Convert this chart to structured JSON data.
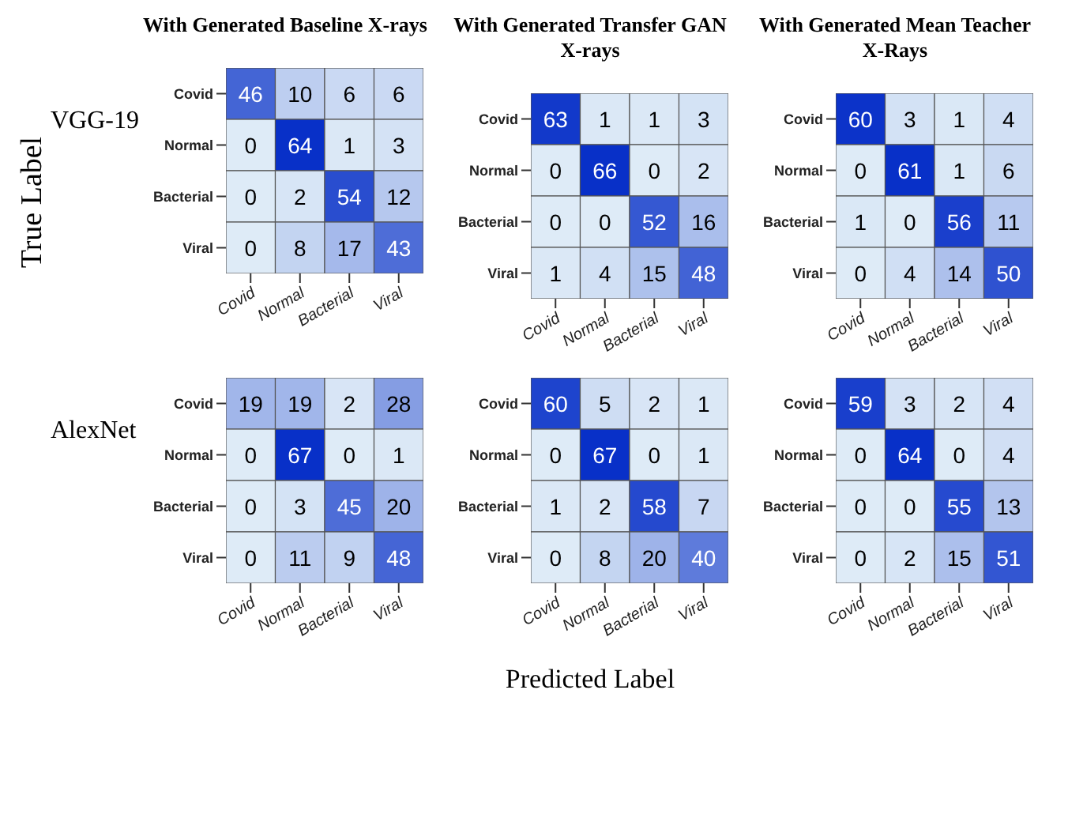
{
  "chart_data": [
    {
      "type": "heatmap",
      "title": "With Generated Baseline X-rays",
      "ylabel": "VGG-19",
      "annotations": [
        "True Label"
      ],
      "data_labels": true,
      "categories": [
        "Covid",
        "Normal",
        "Bacterial",
        "Viral"
      ],
      "y_categories": [
        "Covid",
        "Normal",
        "Bacterial",
        "Viral"
      ],
      "cells": [
        [
          46,
          10,
          6,
          6
        ],
        [
          0,
          64,
          1,
          3
        ],
        [
          0,
          2,
          54,
          12
        ],
        [
          0,
          8,
          17,
          43
        ]
      ]
    },
    {
      "type": "heatmap",
      "title": "With Generated Transfer GAN X-rays",
      "data_labels": true,
      "categories": [
        "Covid",
        "Normal",
        "Bacterial",
        "Viral"
      ],
      "y_categories": [
        "Covid",
        "Normal",
        "Bacterial",
        "Viral"
      ],
      "cells": [
        [
          63,
          1,
          1,
          3
        ],
        [
          0,
          66,
          0,
          2
        ],
        [
          0,
          0,
          52,
          16
        ],
        [
          1,
          4,
          15,
          48
        ]
      ]
    },
    {
      "type": "heatmap",
      "title": "With Generated Mean Teacher X-Rays",
      "data_labels": true,
      "categories": [
        "Covid",
        "Normal",
        "Bacterial",
        "Viral"
      ],
      "y_categories": [
        "Covid",
        "Normal",
        "Bacterial",
        "Viral"
      ],
      "cells": [
        [
          60,
          3,
          1,
          4
        ],
        [
          0,
          61,
          1,
          6
        ],
        [
          1,
          0,
          56,
          11
        ],
        [
          0,
          4,
          14,
          50
        ]
      ]
    },
    {
      "type": "heatmap",
      "ylabel": "AlexNet",
      "data_labels": true,
      "categories": [
        "Covid",
        "Normal",
        "Bacterial",
        "Viral"
      ],
      "y_categories": [
        "Covid",
        "Normal",
        "Bacterial",
        "Viral"
      ],
      "cells": [
        [
          19,
          19,
          2,
          28
        ],
        [
          0,
          67,
          0,
          1
        ],
        [
          0,
          3,
          45,
          20
        ],
        [
          0,
          11,
          9,
          48
        ]
      ]
    },
    {
      "type": "heatmap",
      "xlabel": "Predicted Label",
      "data_labels": true,
      "categories": [
        "Covid",
        "Normal",
        "Bacterial",
        "Viral"
      ],
      "y_categories": [
        "Covid",
        "Normal",
        "Bacterial",
        "Viral"
      ],
      "cells": [
        [
          60,
          5,
          2,
          1
        ],
        [
          0,
          67,
          0,
          1
        ],
        [
          1,
          2,
          58,
          7
        ],
        [
          0,
          8,
          20,
          40
        ]
      ]
    },
    {
      "type": "heatmap",
      "data_labels": true,
      "categories": [
        "Covid",
        "Normal",
        "Bacterial",
        "Viral"
      ],
      "y_categories": [
        "Covid",
        "Normal",
        "Bacterial",
        "Viral"
      ],
      "cells": [
        [
          59,
          3,
          2,
          4
        ],
        [
          0,
          64,
          0,
          4
        ],
        [
          0,
          0,
          55,
          13
        ],
        [
          0,
          2,
          15,
          51
        ]
      ]
    }
  ]
}
